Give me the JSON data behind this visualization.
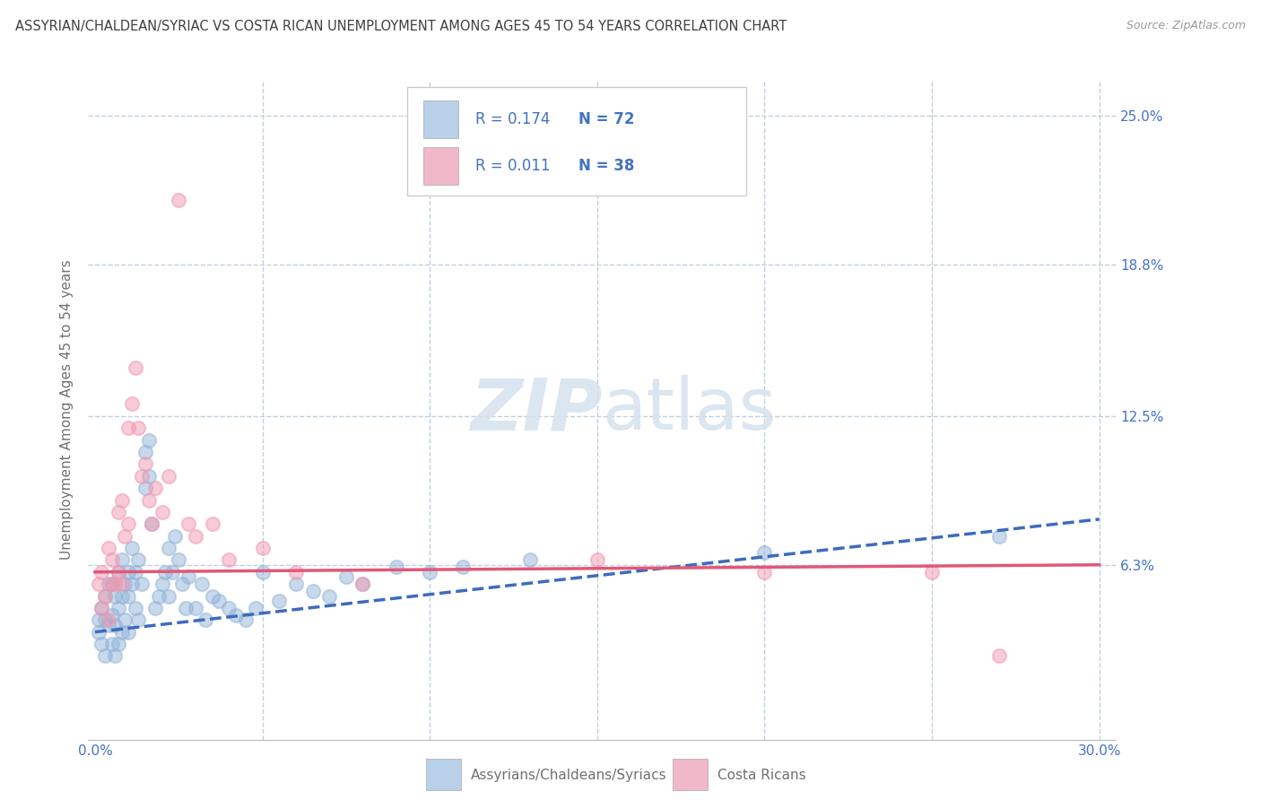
{
  "title": "ASSYRIAN/CHALDEAN/SYRIAC VS COSTA RICAN UNEMPLOYMENT AMONG AGES 45 TO 54 YEARS CORRELATION CHART",
  "source": "Source: ZipAtlas.com",
  "ylabel": "Unemployment Among Ages 45 to 54 years",
  "xlim": [
    -0.002,
    0.305
  ],
  "ylim": [
    -0.01,
    0.265
  ],
  "yticks": [
    0.063,
    0.125,
    0.188,
    0.25
  ],
  "ytick_labels": [
    "6.3%",
    "12.5%",
    "18.8%",
    "25.0%"
  ],
  "xticks": [
    0.0,
    0.05,
    0.1,
    0.15,
    0.2,
    0.25,
    0.3
  ],
  "xtick_labels": [
    "0.0%",
    "",
    "",
    "",
    "",
    "",
    "30.0%"
  ],
  "blue_x": [
    0.001,
    0.001,
    0.002,
    0.002,
    0.003,
    0.003,
    0.003,
    0.004,
    0.004,
    0.005,
    0.005,
    0.005,
    0.006,
    0.006,
    0.006,
    0.007,
    0.007,
    0.007,
    0.008,
    0.008,
    0.008,
    0.009,
    0.009,
    0.01,
    0.01,
    0.01,
    0.011,
    0.011,
    0.012,
    0.012,
    0.013,
    0.013,
    0.014,
    0.015,
    0.015,
    0.016,
    0.016,
    0.017,
    0.018,
    0.019,
    0.02,
    0.021,
    0.022,
    0.022,
    0.023,
    0.024,
    0.025,
    0.026,
    0.027,
    0.028,
    0.03,
    0.032,
    0.033,
    0.035,
    0.037,
    0.04,
    0.042,
    0.045,
    0.048,
    0.05,
    0.055,
    0.06,
    0.065,
    0.07,
    0.075,
    0.08,
    0.09,
    0.1,
    0.11,
    0.13,
    0.2,
    0.27
  ],
  "blue_y": [
    0.04,
    0.035,
    0.03,
    0.045,
    0.025,
    0.04,
    0.05,
    0.038,
    0.055,
    0.03,
    0.042,
    0.055,
    0.025,
    0.038,
    0.05,
    0.03,
    0.045,
    0.06,
    0.035,
    0.05,
    0.065,
    0.04,
    0.055,
    0.035,
    0.05,
    0.06,
    0.055,
    0.07,
    0.045,
    0.06,
    0.04,
    0.065,
    0.055,
    0.095,
    0.11,
    0.1,
    0.115,
    0.08,
    0.045,
    0.05,
    0.055,
    0.06,
    0.05,
    0.07,
    0.06,
    0.075,
    0.065,
    0.055,
    0.045,
    0.058,
    0.045,
    0.055,
    0.04,
    0.05,
    0.048,
    0.045,
    0.042,
    0.04,
    0.045,
    0.06,
    0.048,
    0.055,
    0.052,
    0.05,
    0.058,
    0.055,
    0.062,
    0.06,
    0.062,
    0.065,
    0.068,
    0.075
  ],
  "pink_x": [
    0.001,
    0.002,
    0.002,
    0.003,
    0.004,
    0.004,
    0.005,
    0.005,
    0.006,
    0.007,
    0.007,
    0.008,
    0.008,
    0.009,
    0.01,
    0.01,
    0.011,
    0.012,
    0.013,
    0.014,
    0.015,
    0.016,
    0.017,
    0.018,
    0.02,
    0.022,
    0.025,
    0.028,
    0.03,
    0.035,
    0.04,
    0.05,
    0.06,
    0.08,
    0.15,
    0.2,
    0.25,
    0.27
  ],
  "pink_y": [
    0.055,
    0.045,
    0.06,
    0.05,
    0.04,
    0.07,
    0.055,
    0.065,
    0.055,
    0.06,
    0.085,
    0.055,
    0.09,
    0.075,
    0.08,
    0.12,
    0.13,
    0.145,
    0.12,
    0.1,
    0.105,
    0.09,
    0.08,
    0.095,
    0.085,
    0.1,
    0.215,
    0.08,
    0.075,
    0.08,
    0.065,
    0.07,
    0.06,
    0.055,
    0.065,
    0.06,
    0.06,
    0.025
  ],
  "trend_blue_x0": 0.0,
  "trend_blue_y0": 0.035,
  "trend_blue_x1": 0.3,
  "trend_blue_y1": 0.082,
  "trend_pink_x0": 0.0,
  "trend_pink_y0": 0.06,
  "trend_pink_x1": 0.3,
  "trend_pink_y1": 0.063,
  "blue_dot_color": "#92b4d8",
  "blue_line_color": "#3d6bbf",
  "pink_dot_color": "#f098b0",
  "pink_line_color": "#e05878",
  "legend_box_blue": "#b8d0e8",
  "legend_box_pink": "#f0b8c8",
  "grid_color": "#c0d0e0",
  "background_color": "#ffffff",
  "title_color": "#404040",
  "axis_label_color": "#707070",
  "tick_color": "#4472c4",
  "watermark_color": "#d5e2ef",
  "r_blue": 0.174,
  "n_blue": 72,
  "r_pink": 0.011,
  "n_pink": 38
}
